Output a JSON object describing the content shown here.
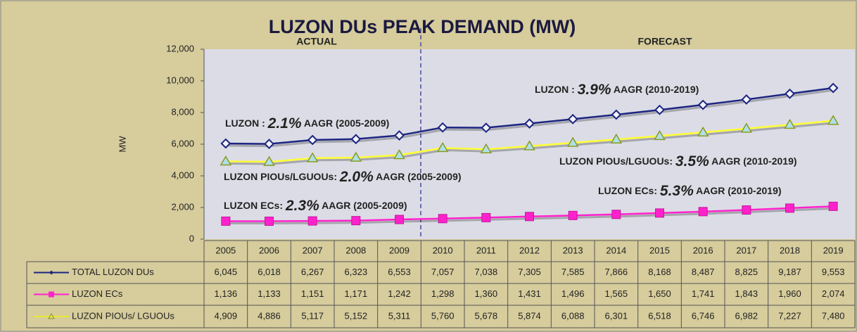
{
  "chart_data": {
    "type": "line",
    "title": "LUZON DUs PEAK DEMAND (MW)",
    "period_labels": [
      "ACTUAL",
      "FORECAST"
    ],
    "ylabel": "MW",
    "categories": [
      "2005",
      "2006",
      "2007",
      "2008",
      "2009",
      "2010",
      "2011",
      "2012",
      "2013",
      "2014",
      "2015",
      "2016",
      "2017",
      "2018",
      "2019"
    ],
    "ylim": [
      0,
      12000
    ],
    "yticks": [
      0,
      {
        "value": 2000,
        "label": "2,000"
      },
      {
        "value": 4000,
        "label": "4,000"
      },
      {
        "value": 6000,
        "label": "6,000"
      },
      {
        "value": 8000,
        "label": "8,000"
      },
      {
        "value": 10000,
        "label": "10,000"
      },
      {
        "value": 12000,
        "label": "12,000"
      }
    ],
    "series": [
      {
        "name": "TOTAL LUZON DUs",
        "color": "#1c2580",
        "values": [
          6045,
          6018,
          6267,
          6323,
          6553,
          7057,
          7038,
          7305,
          7585,
          7866,
          8168,
          8487,
          8825,
          9187,
          9553
        ],
        "value_labels": [
          "6,045",
          "6,018",
          "6,267",
          "6,323",
          "6,553",
          "7,057",
          "7,038",
          "7,305",
          "7,585",
          "7,866",
          "8,168",
          "8,487",
          "8,825",
          "9,187",
          "9,553"
        ]
      },
      {
        "name": "LUZON ECs",
        "color": "#ff22cc",
        "values": [
          1136,
          1133,
          1151,
          1171,
          1242,
          1298,
          1360,
          1431,
          1496,
          1565,
          1650,
          1741,
          1843,
          1960,
          2074
        ],
        "value_labels": [
          "1,136",
          "1,133",
          "1,151",
          "1,171",
          "1,242",
          "1,298",
          "1,360",
          "1,431",
          "1,496",
          "1,565",
          "1,650",
          "1,741",
          "1,843",
          "1,960",
          "2,074"
        ]
      },
      {
        "name": "LUZON PIOUs/ LGUOUs",
        "color": "#ffff33",
        "values": [
          4909,
          4886,
          5117,
          5152,
          5311,
          5760,
          5678,
          5874,
          6088,
          6301,
          6518,
          6746,
          6982,
          7227,
          7480
        ],
        "value_labels": [
          "4,909",
          "4,886",
          "5,117",
          "5,152",
          "5,311",
          "5,760",
          "5,678",
          "5,874",
          "6,088",
          "6,301",
          "6,518",
          "6,746",
          "6,982",
          "7,227",
          "7,480"
        ]
      }
    ],
    "annotations": [
      [
        "LUZON : ",
        "2.1%",
        " AAGR (2005-2009)"
      ],
      [
        "LUZON PIOUs/LGUOUs: ",
        "2.0%",
        " AAGR (2005-2009)"
      ],
      [
        "LUZON ECs: ",
        "2.3%",
        " AAGR (2005-2009)"
      ],
      [
        "LUZON : ",
        "3.9%",
        " AAGR (2010-2019)"
      ],
      [
        "LUZON PIOUs/LGUOUs: ",
        "3.5%",
        " AAGR (2010-2019)"
      ],
      [
        "LUZON ECs: ",
        "5.3%",
        " AAGR (2010-2019)"
      ]
    ]
  }
}
